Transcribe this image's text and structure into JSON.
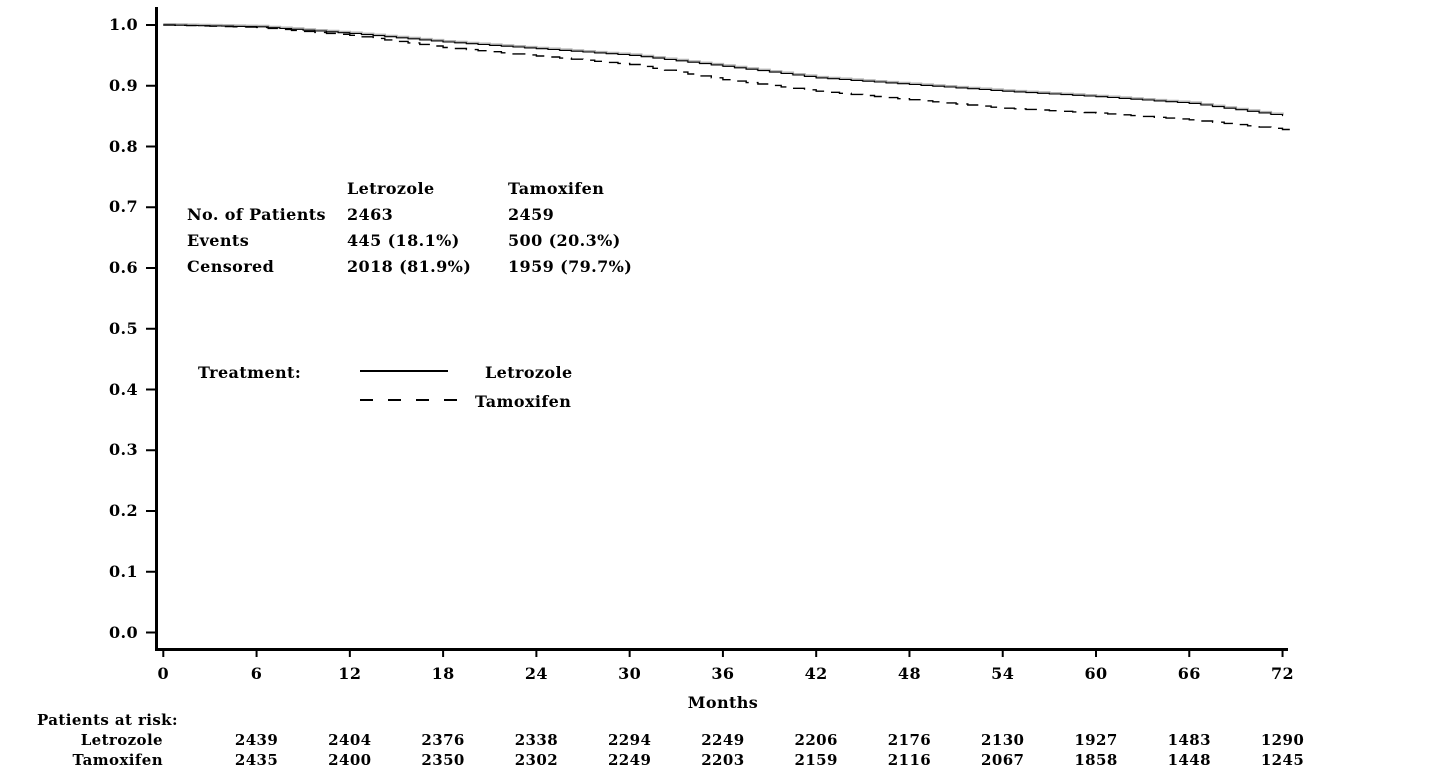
{
  "chart_data": {
    "type": "line",
    "subtype": "kaplan-meier-step",
    "title": "",
    "xlabel": "Months",
    "ylabel": "",
    "xlim": [
      0,
      72
    ],
    "ylim": [
      0.0,
      1.0
    ],
    "grid": false,
    "legend_position": "inside-left",
    "x_ticks": [
      0,
      6,
      12,
      18,
      24,
      30,
      36,
      42,
      48,
      54,
      60,
      66,
      72
    ],
    "y_ticks": [
      "0.0",
      "0.1",
      "0.2",
      "0.3",
      "0.4",
      "0.5",
      "0.6",
      "0.7",
      "0.8",
      "0.9",
      "1.0"
    ],
    "months": [
      0,
      6,
      12,
      18,
      24,
      30,
      36,
      42,
      48,
      54,
      60,
      66,
      72
    ],
    "series": [
      {
        "name": "Letrozole",
        "line_style": "solid",
        "color": "#000000",
        "halo_color": "#b4b4b4",
        "values": [
          1.0,
          0.997,
          0.986,
          0.972,
          0.961,
          0.95,
          0.932,
          0.913,
          0.902,
          0.891,
          0.882,
          0.871,
          0.85
        ]
      },
      {
        "name": "Tamoxifen",
        "line_style": "dashed",
        "color": "#000000",
        "values": [
          1.0,
          0.996,
          0.983,
          0.963,
          0.949,
          0.935,
          0.91,
          0.891,
          0.877,
          0.863,
          0.855,
          0.844,
          0.828
        ]
      }
    ]
  },
  "stats_table": {
    "col_headers": [
      "Letrozole",
      "Tamoxifen"
    ],
    "rows": [
      {
        "label": "No. of Patients",
        "letrozole": "2463",
        "tamoxifen": "2459"
      },
      {
        "label": "Events",
        "letrozole": "445 (18.1%)",
        "tamoxifen": "500 (20.3%)"
      },
      {
        "label": "Censored",
        "letrozole": "2018 (81.9%)",
        "tamoxifen": "1959 (79.7%)"
      }
    ]
  },
  "legend": {
    "title": "Treatment:",
    "entries": [
      {
        "label": "Letrozole",
        "line": "solid"
      },
      {
        "label": "Tamoxifen",
        "line": "dashed"
      }
    ]
  },
  "at_risk": {
    "title": "Patients at risk:",
    "months": [
      6,
      12,
      18,
      24,
      30,
      36,
      42,
      48,
      54,
      60,
      66,
      72
    ],
    "rows": [
      {
        "label": "Letrozole",
        "counts": [
          2439,
          2404,
          2376,
          2338,
          2294,
          2249,
          2206,
          2176,
          2130,
          1927,
          1483,
          1290
        ]
      },
      {
        "label": "Tamoxifen",
        "counts": [
          2435,
          2400,
          2350,
          2302,
          2249,
          2203,
          2159,
          2116,
          2067,
          1858,
          1448,
          1245
        ]
      }
    ]
  }
}
